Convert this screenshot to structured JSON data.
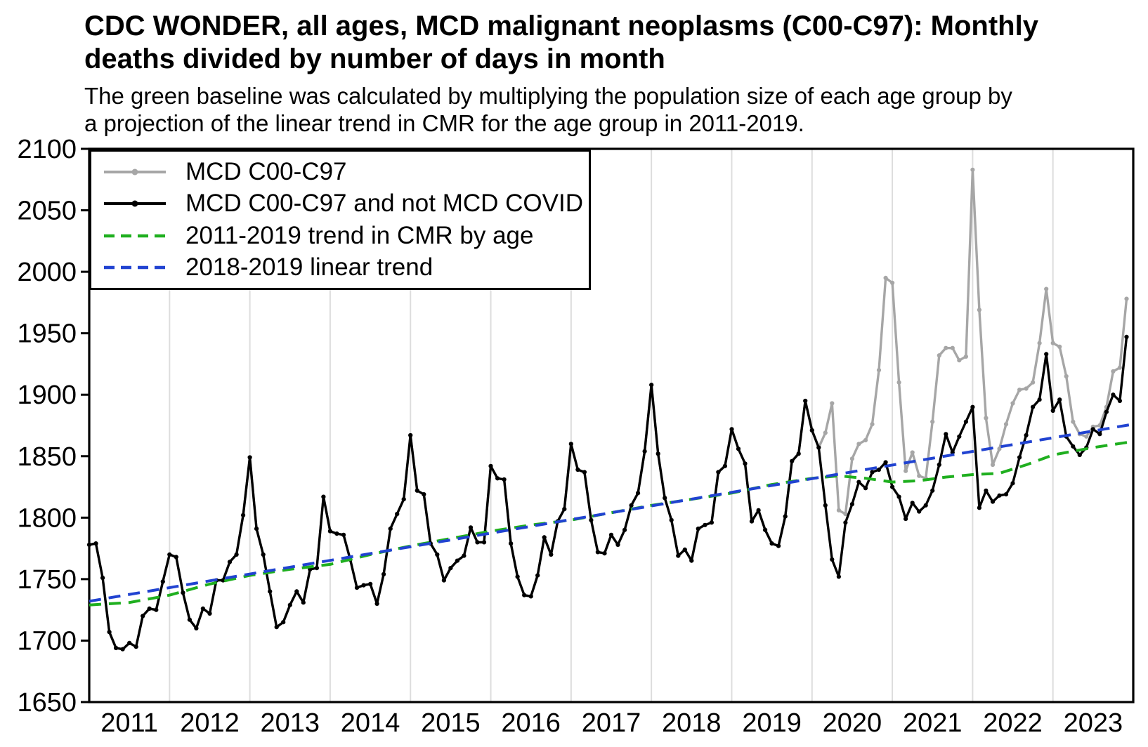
{
  "title": "CDC WONDER, all ages, MCD malignant neoplasms (C00-C97): Monthly\ndeaths divided by number of days in month",
  "subtitle": "The green baseline was calculated by multiplying the population size of each age group by\na projection of the linear trend in CMR for the age group in 2011-2019.",
  "colors": {
    "gray_series": "#a6a6a6",
    "black_series": "#000000",
    "green_trend": "#1faf1f",
    "blue_trend": "#2143d1",
    "gridline": "#dddddd",
    "spine": "#000000"
  },
  "chart_data": {
    "type": "line",
    "title": "CDC WONDER, all ages, MCD malignant neoplasms (C00-C97): Monthly deaths divided by number of days in month",
    "xlabel": "",
    "ylabel": "",
    "xlim": [
      2011.0,
      2024.0
    ],
    "ylim": [
      1650,
      2100
    ],
    "grid": "vertical yearly gridlines only",
    "legend_position": "top-left",
    "y_ticks": [
      1650,
      1700,
      1750,
      1800,
      1850,
      1900,
      1950,
      2000,
      2050,
      2100
    ],
    "x_tick_labels": [
      "2011",
      "2012",
      "2013",
      "2014",
      "2015",
      "2016",
      "2017",
      "2018",
      "2019",
      "2020",
      "2021",
      "2022",
      "2023"
    ],
    "x_months_start": "2011-01",
    "x_months_end": "2023-12",
    "n_points": 156,
    "series": [
      {
        "name": "MCD C00-C97",
        "style": "solid line with dot markers",
        "color_key": "gray_series",
        "values": [
          1778,
          1779,
          1751,
          1707,
          1694,
          1693,
          1698,
          1695,
          1720,
          1726,
          1725,
          1748,
          1770,
          1768,
          1739,
          1717,
          1710,
          1726,
          1722,
          1749,
          1749,
          1764,
          1770,
          1802,
          1849,
          1791,
          1770,
          1740,
          1711,
          1715,
          1729,
          1740,
          1731,
          1758,
          1759,
          1817,
          1789,
          1787,
          1786,
          1766,
          1743,
          1745,
          1746,
          1730,
          1754,
          1791,
          1803,
          1815,
          1867,
          1822,
          1819,
          1779,
          1770,
          1749,
          1759,
          1765,
          1769,
          1792,
          1780,
          1780,
          1842,
          1832,
          1831,
          1779,
          1752,
          1737,
          1736,
          1753,
          1784,
          1770,
          1797,
          1807,
          1860,
          1839,
          1837,
          1798,
          1772,
          1771,
          1786,
          1778,
          1790,
          1810,
          1820,
          1854,
          1908,
          1852,
          1816,
          1798,
          1769,
          1774,
          1765,
          1791,
          1794,
          1796,
          1837,
          1842,
          1872,
          1856,
          1844,
          1797,
          1806,
          1790,
          1779,
          1777,
          1801,
          1846,
          1852,
          1895,
          1871,
          1857,
          1869,
          1893,
          1806,
          1803,
          1848,
          1860,
          1863,
          1876,
          1920,
          1995,
          1991,
          1910,
          1838,
          1853,
          1834,
          1832,
          1878,
          1932,
          1938,
          1938,
          1928,
          1931,
          2083,
          1969,
          1881,
          1843,
          1856,
          1876,
          1893,
          1904,
          1905,
          1910,
          1942,
          1986,
          1942,
          1939,
          1915,
          1878,
          1868,
          1866,
          1874,
          1875,
          1890,
          1919,
          1922,
          1978
        ]
      },
      {
        "name": "MCD C00-C97 and not MCD COVID",
        "style": "solid line with dot markers",
        "color_key": "black_series",
        "values": [
          1778,
          1779,
          1751,
          1707,
          1694,
          1693,
          1698,
          1695,
          1720,
          1726,
          1725,
          1748,
          1770,
          1768,
          1739,
          1717,
          1710,
          1726,
          1722,
          1749,
          1749,
          1764,
          1770,
          1802,
          1849,
          1791,
          1770,
          1740,
          1711,
          1715,
          1729,
          1740,
          1731,
          1758,
          1759,
          1817,
          1789,
          1787,
          1786,
          1766,
          1743,
          1745,
          1746,
          1730,
          1754,
          1791,
          1803,
          1815,
          1867,
          1822,
          1819,
          1779,
          1770,
          1749,
          1759,
          1765,
          1769,
          1792,
          1780,
          1780,
          1842,
          1832,
          1831,
          1779,
          1752,
          1737,
          1736,
          1753,
          1784,
          1770,
          1797,
          1807,
          1860,
          1839,
          1837,
          1798,
          1772,
          1771,
          1786,
          1778,
          1790,
          1810,
          1820,
          1854,
          1908,
          1852,
          1816,
          1798,
          1769,
          1774,
          1765,
          1791,
          1794,
          1796,
          1837,
          1842,
          1872,
          1856,
          1844,
          1797,
          1806,
          1790,
          1779,
          1777,
          1801,
          1846,
          1852,
          1895,
          1871,
          1857,
          1810,
          1766,
          1752,
          1796,
          1811,
          1829,
          1824,
          1837,
          1839,
          1845,
          1825,
          1817,
          1799,
          1812,
          1805,
          1810,
          1822,
          1843,
          1868,
          1853,
          1866,
          1878,
          1890,
          1808,
          1822,
          1813,
          1818,
          1819,
          1828,
          1849,
          1867,
          1890,
          1896,
          1933,
          1887,
          1896,
          1866,
          1858,
          1851,
          1857,
          1872,
          1868,
          1886,
          1900,
          1895,
          1947
        ]
      },
      {
        "name": "2011-2019 trend in CMR by age",
        "style": "dashed",
        "color_key": "green_trend",
        "points": [
          [
            2011.0,
            1729
          ],
          [
            2011.5,
            1731
          ],
          [
            2012.0,
            1737
          ],
          [
            2012.5,
            1746
          ],
          [
            2013.0,
            1753
          ],
          [
            2013.5,
            1758
          ],
          [
            2014.0,
            1762
          ],
          [
            2014.5,
            1770
          ],
          [
            2015.0,
            1777
          ],
          [
            2015.5,
            1783
          ],
          [
            2016.0,
            1789
          ],
          [
            2016.5,
            1794
          ],
          [
            2017.0,
            1798
          ],
          [
            2017.5,
            1804
          ],
          [
            2018.0,
            1810
          ],
          [
            2018.5,
            1815
          ],
          [
            2019.0,
            1820
          ],
          [
            2019.5,
            1827
          ],
          [
            2020.0,
            1832
          ],
          [
            2020.33,
            1834
          ],
          [
            2020.67,
            1832
          ],
          [
            2021.0,
            1829
          ],
          [
            2021.33,
            1830
          ],
          [
            2021.67,
            1833
          ],
          [
            2022.0,
            1835
          ],
          [
            2022.33,
            1836
          ],
          [
            2022.67,
            1843
          ],
          [
            2023.0,
            1851
          ],
          [
            2023.5,
            1857
          ],
          [
            2024.0,
            1862
          ]
        ]
      },
      {
        "name": "2018-2019 linear trend",
        "style": "dashed",
        "color_key": "blue_trend",
        "points": [
          [
            2011.0,
            1732
          ],
          [
            2024.0,
            1876
          ]
        ]
      }
    ]
  },
  "legend": {
    "items": [
      {
        "label": "MCD C00-C97"
      },
      {
        "label": "MCD C00-C97 and not MCD COVID"
      },
      {
        "label": "2011-2019 trend in CMR by age"
      },
      {
        "label": "2018-2019 linear trend"
      }
    ]
  }
}
